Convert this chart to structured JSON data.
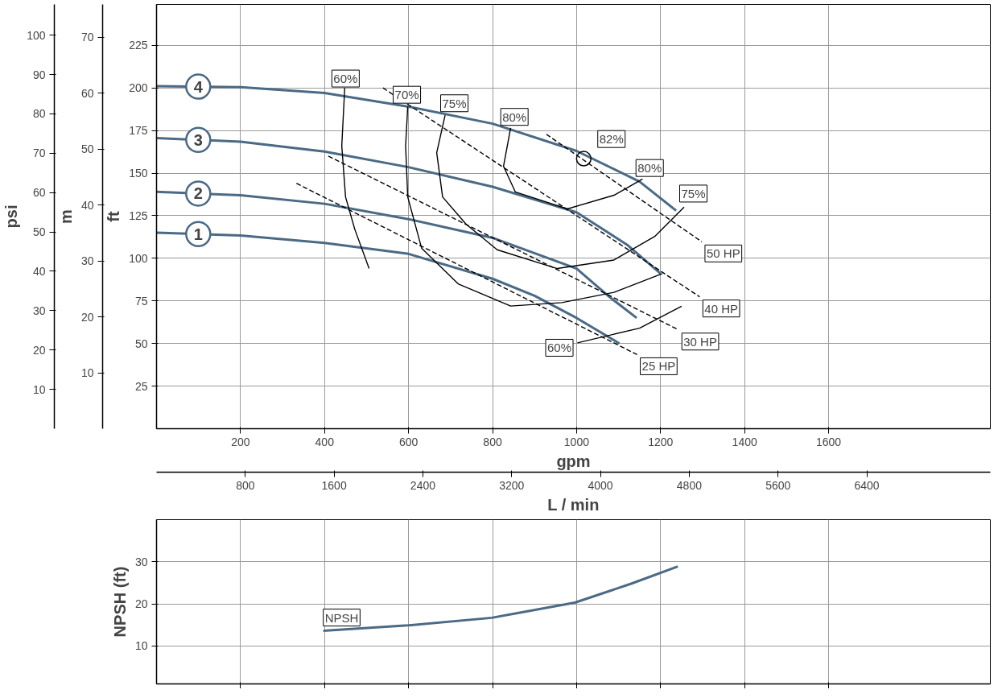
{
  "chart_data": [
    {
      "type": "line",
      "xlabel": "gpm",
      "x2label": "L / min",
      "ylabel": "ft",
      "y2label": "psi",
      "y3label": "m",
      "xlim": [
        0,
        1985
      ],
      "xticks": [
        200,
        400,
        600,
        800,
        1000,
        1200,
        1400,
        1600
      ],
      "x2lim": [
        0,
        7513
      ],
      "x2ticks": [
        800,
        1600,
        2400,
        3200,
        4000,
        4800,
        5600,
        6400
      ],
      "ylim": [
        0,
        249
      ],
      "yticks": [
        25,
        50,
        75,
        100,
        125,
        150,
        175,
        200,
        225
      ],
      "y2lim": [
        0,
        107.8
      ],
      "y2ticks": [
        10,
        20,
        30,
        40,
        50,
        60,
        70,
        80,
        90,
        100
      ],
      "y3lim": [
        0,
        75.9
      ],
      "y3ticks": [
        10,
        20,
        30,
        40,
        50,
        60,
        70
      ],
      "grid": true,
      "series": [
        {
          "name": "4",
          "color": "#4a6a85",
          "x": [
            0,
            200,
            400,
            600,
            800,
            1000,
            1150,
            1237
          ],
          "values": [
            201,
            200.5,
            197,
            189,
            179,
            163,
            145,
            128
          ]
        },
        {
          "name": "3",
          "color": "#4a6a85",
          "x": [
            0,
            200,
            400,
            600,
            800,
            1000,
            1120,
            1200
          ],
          "values": [
            170.6,
            168.4,
            162.7,
            153.5,
            142,
            127,
            108,
            91
          ]
        },
        {
          "name": "2",
          "color": "#4a6a85",
          "x": [
            0,
            200,
            400,
            600,
            800,
            1000,
            1080,
            1143
          ],
          "values": [
            139,
            137,
            132,
            123,
            112,
            94,
            77,
            65
          ]
        },
        {
          "name": "1",
          "color": "#4a6a85",
          "x": [
            0,
            200,
            400,
            600,
            800,
            900,
            1000,
            1102
          ],
          "values": [
            115,
            113.4,
            109,
            102.6,
            88,
            78,
            65,
            50
          ]
        },
        {
          "color": "#000000",
          "x": [
            448,
            441,
            450,
            472,
            506
          ],
          "values": [
            200,
            166,
            136,
            117,
            94
          ]
        },
        {
          "color": "#000000",
          "x": [
            1002,
            1150,
            1250
          ],
          "values": [
            50.4,
            59,
            71.9
          ]
        },
        {
          "color": "#000000",
          "x": [
            598,
            593,
            598,
            631,
            718,
            843,
            965,
            1089,
            1204
          ],
          "values": [
            189,
            166,
            136,
            106,
            85,
            72,
            74,
            80,
            91
          ]
        },
        {
          "color": "#000000",
          "x": [
            687,
            667,
            681,
            737,
            811,
            954,
            1089,
            1187,
            1256
          ],
          "values": [
            184,
            162,
            136,
            120,
            105,
            94,
            99,
            113,
            130
          ]
        },
        {
          "color": "#000000",
          "x": [
            843,
            826,
            854,
            978,
            1089,
            1157
          ],
          "values": [
            176.5,
            154,
            139,
            129,
            137,
            146.5
          ]
        },
        {
          "type": "scatter",
          "marker": "circle",
          "color": "#000000",
          "x": [
            1017
          ],
          "values": [
            158.5
          ]
        },
        {
          "color": "#000000",
          "line_style": "dashed",
          "x": [
            928,
            1298
          ],
          "values": [
            172.8,
            109.7
          ]
        },
        {
          "color": "#000000",
          "line_style": "dashed",
          "x": [
            539,
            1293
          ],
          "values": [
            200,
            77.4
          ]
        },
        {
          "color": "#000000",
          "line_style": "dashed",
          "x": [
            409,
            1243
          ],
          "values": [
            160,
            58
          ]
        },
        {
          "color": "#000000",
          "line_style": "dashed",
          "x": [
            333,
            1144
          ],
          "values": [
            144,
            43.5
          ]
        }
      ],
      "annotations": [
        {
          "text": "60%",
          "x": 450,
          "y": 205.5
        },
        {
          "text": "70%",
          "x": 596,
          "y": 196
        },
        {
          "text": "75%",
          "x": 709,
          "y": 191
        },
        {
          "text": "80%",
          "x": 852,
          "y": 183
        },
        {
          "text": "82%",
          "x": 1083,
          "y": 170
        },
        {
          "text": "80%",
          "x": 1174,
          "y": 153
        },
        {
          "text": "75%",
          "x": 1278,
          "y": 138
        },
        {
          "text": "60%",
          "x": 959,
          "y": 47.5
        },
        {
          "text": "50 HP",
          "x": 1298,
          "y": 109.7
        },
        {
          "text": "40 HP",
          "x": 1293,
          "y": 77.4
        },
        {
          "text": "30 HP",
          "x": 1243,
          "y": 58
        },
        {
          "text": "25 HP",
          "x": 1144,
          "y": 43.5
        }
      ]
    },
    {
      "type": "line",
      "ylabel": "NPSH (ft)",
      "xlim": [
        0,
        1985
      ],
      "xticks": [
        200,
        400,
        600,
        800,
        1000,
        1200,
        1400,
        1600
      ],
      "ylim": [
        1,
        40
      ],
      "yticks": [
        10,
        20,
        30
      ],
      "grid": true,
      "tick_labels": "y",
      "series": [
        {
          "color": "#4a6a85",
          "x": [
            397,
            598,
            798,
            996,
            1130,
            1241
          ],
          "values": [
            13.6,
            14.9,
            16.7,
            20.3,
            24.8,
            28.9
          ]
        }
      ],
      "annotations": [
        {
          "text": "NPSH",
          "x": 397,
          "y": 13.6
        }
      ]
    }
  ]
}
